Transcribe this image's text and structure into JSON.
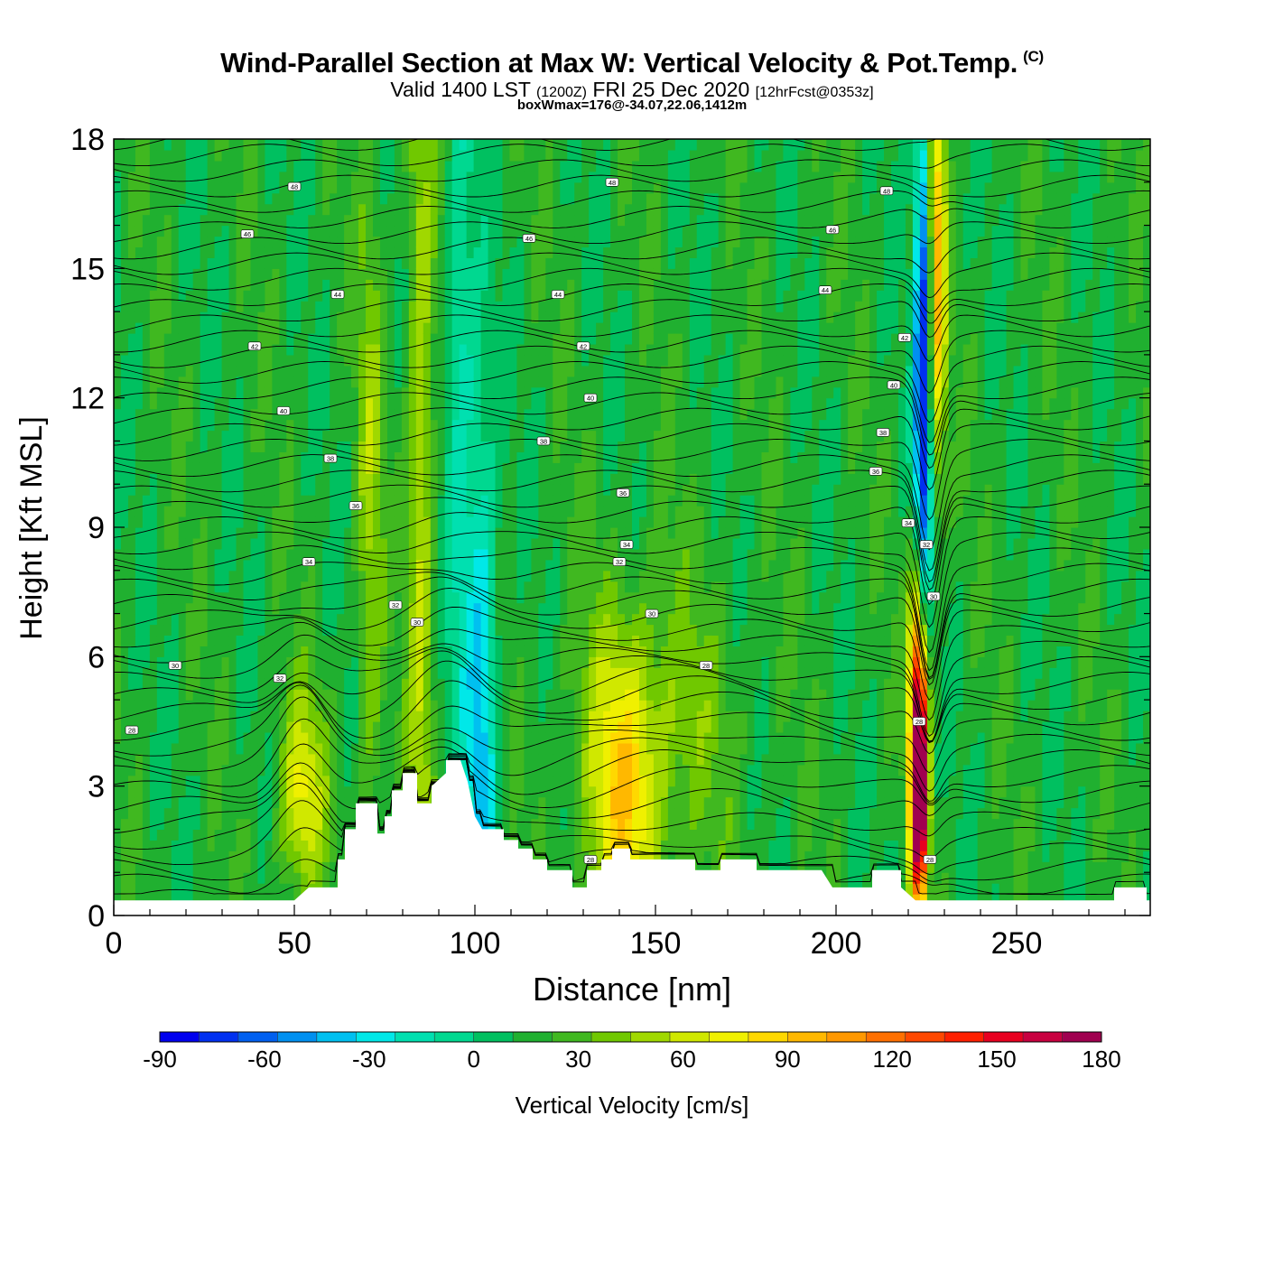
{
  "title": "Wind-Parallel Section at Max W: Vertical Velocity & Pot.Temp.",
  "title_mark": "(C)",
  "subtitle": {
    "valid": "Valid 1400 LST",
    "zulu": "(1200Z)",
    "date": "FRI 25 Dec 2020",
    "forecast": "[12hrFcst@0353z]"
  },
  "box_info": "boxWmax=176@-34.07,22.06,1412m",
  "chart_data": {
    "type": "heatmap",
    "title": "Wind-Parallel Section at Max W: Vertical Velocity & Pot.Temp.",
    "xlabel": "Distance [nm]",
    "ylabel": "Height [Kft MSL]",
    "xlim": [
      0,
      287
    ],
    "ylim": [
      0,
      18
    ],
    "x_ticks": [
      0,
      50,
      100,
      150,
      200,
      250
    ],
    "y_ticks": [
      0,
      3,
      6,
      9,
      12,
      15,
      18
    ],
    "colorbar": {
      "label": "Vertical Velocity [cm/s]",
      "min": -90,
      "max": 180,
      "step": 10,
      "ticks": [
        -90,
        -60,
        -30,
        0,
        30,
        60,
        90,
        120,
        150,
        180
      ],
      "colors": [
        "#0000ee",
        "#0030f0",
        "#0060f0",
        "#0090f0",
        "#00c0f0",
        "#00e8e8",
        "#00e0b0",
        "#00d890",
        "#00c060",
        "#20b030",
        "#40b820",
        "#70c800",
        "#a0d800",
        "#d0e800",
        "#f0f000",
        "#ffd800",
        "#ffb800",
        "#ff9800",
        "#ff7000",
        "#ff4800",
        "#ff2000",
        "#e80020",
        "#c80040",
        "#a00050"
      ]
    },
    "terrain_kft": [
      [
        0,
        0.35
      ],
      [
        10,
        0.35
      ],
      [
        20,
        0.35
      ],
      [
        30,
        0.35
      ],
      [
        40,
        0.35
      ],
      [
        50,
        0.35
      ],
      [
        54,
        0.65
      ],
      [
        62,
        0.65
      ],
      [
        62,
        1.3
      ],
      [
        64,
        1.3
      ],
      [
        64,
        2.0
      ],
      [
        67,
        2.0
      ],
      [
        67,
        2.6
      ],
      [
        73,
        2.6
      ],
      [
        73,
        1.9
      ],
      [
        75,
        1.9
      ],
      [
        75,
        2.3
      ],
      [
        77,
        2.3
      ],
      [
        77,
        2.9
      ],
      [
        80,
        2.9
      ],
      [
        80,
        3.3
      ],
      [
        84,
        3.3
      ],
      [
        84,
        2.6
      ],
      [
        88,
        2.6
      ],
      [
        88,
        3.0
      ],
      [
        92,
        3.3
      ],
      [
        92,
        3.6
      ],
      [
        96,
        3.6
      ],
      [
        98,
        3.1
      ],
      [
        100,
        2.3
      ],
      [
        102,
        2.0
      ],
      [
        108,
        2.0
      ],
      [
        108,
        1.75
      ],
      [
        112,
        1.75
      ],
      [
        112,
        1.55
      ],
      [
        116,
        1.55
      ],
      [
        116,
        1.3
      ],
      [
        120,
        1.3
      ],
      [
        120,
        1.05
      ],
      [
        127,
        1.05
      ],
      [
        127,
        0.65
      ],
      [
        131,
        0.65
      ],
      [
        131,
        1.05
      ],
      [
        135,
        1.05
      ],
      [
        135,
        1.3
      ],
      [
        138,
        1.3
      ],
      [
        138,
        1.55
      ],
      [
        143,
        1.55
      ],
      [
        143,
        1.3
      ],
      [
        161,
        1.3
      ],
      [
        161,
        1.05
      ],
      [
        168,
        1.05
      ],
      [
        168,
        1.3
      ],
      [
        178,
        1.3
      ],
      [
        178,
        1.05
      ],
      [
        196,
        1.05
      ],
      [
        199,
        0.65
      ],
      [
        210,
        0.65
      ],
      [
        210,
        1.05
      ],
      [
        218,
        1.05
      ],
      [
        218,
        0.65
      ],
      [
        222,
        0.35
      ],
      [
        277,
        0.35
      ],
      [
        277,
        0.65
      ],
      [
        286,
        0.65
      ],
      [
        286,
        0.35
      ],
      [
        287,
        0.35
      ]
    ],
    "w_features": [
      {
        "x": 52,
        "z": 2.8,
        "sx": 4.5,
        "sz": 1.6,
        "w": 48
      },
      {
        "x": 85,
        "z": 10,
        "sx": 2.5,
        "sz": 9,
        "w": 38
      },
      {
        "x": 71,
        "z": 9,
        "sx": 2.5,
        "sz": 6,
        "w": 28
      },
      {
        "x": 102,
        "z": 4.5,
        "sx": 3,
        "sz": 5,
        "w": -48
      },
      {
        "x": 96,
        "z": 12,
        "sx": 2.8,
        "sz": 6,
        "w": -30
      },
      {
        "x": 141,
        "z": 2.5,
        "sx": 7,
        "sz": 2.5,
        "w": 48
      },
      {
        "x": 150,
        "z": 4.5,
        "sx": 16,
        "sz": 2.5,
        "w": 22
      },
      {
        "x": 223,
        "z": 5,
        "sx": 1.8,
        "sz": 2.2,
        "w": 158
      },
      {
        "x": 223,
        "z": 2.2,
        "sx": 1.6,
        "sz": 1.5,
        "w": 130
      },
      {
        "x": 228,
        "z": 15,
        "sx": 1.8,
        "sz": 3.5,
        "w": 70
      },
      {
        "x": 224,
        "z": 9.5,
        "sx": 1.7,
        "sz": 4,
        "w": -80
      },
      {
        "x": 224,
        "z": 16,
        "sx": 1.5,
        "sz": 3,
        "w": -50
      }
    ],
    "theta_labels": [
      {
        "x": 5,
        "z": 4.3,
        "text": "28"
      },
      {
        "x": 17,
        "z": 5.8,
        "text": "30"
      },
      {
        "x": 46,
        "z": 5.5,
        "text": "32"
      },
      {
        "x": 54,
        "z": 8.2,
        "text": "34"
      },
      {
        "x": 67,
        "z": 9.5,
        "text": "36"
      },
      {
        "x": 60,
        "z": 10.6,
        "text": "38"
      },
      {
        "x": 47,
        "z": 11.7,
        "text": "40"
      },
      {
        "x": 39,
        "z": 13.2,
        "text": "42"
      },
      {
        "x": 62,
        "z": 14.4,
        "text": "44"
      },
      {
        "x": 37,
        "z": 15.8,
        "text": "46"
      },
      {
        "x": 50,
        "z": 16.9,
        "text": "48"
      },
      {
        "x": 78,
        "z": 7.2,
        "text": "32"
      },
      {
        "x": 84,
        "z": 6.8,
        "text": "30"
      },
      {
        "x": 140,
        "z": 8.2,
        "text": "32"
      },
      {
        "x": 142,
        "z": 8.6,
        "text": "34"
      },
      {
        "x": 149,
        "z": 7.0,
        "text": "30"
      },
      {
        "x": 141,
        "z": 9.8,
        "text": "36"
      },
      {
        "x": 119,
        "z": 11.0,
        "text": "38"
      },
      {
        "x": 132,
        "z": 12.0,
        "text": "40"
      },
      {
        "x": 130,
        "z": 13.2,
        "text": "42"
      },
      {
        "x": 123,
        "z": 14.4,
        "text": "44"
      },
      {
        "x": 115,
        "z": 15.7,
        "text": "46"
      },
      {
        "x": 138,
        "z": 17.0,
        "text": "48"
      },
      {
        "x": 164,
        "z": 5.8,
        "text": "28"
      },
      {
        "x": 132,
        "z": 1.3,
        "text": "28"
      },
      {
        "x": 211,
        "z": 10.3,
        "text": "36"
      },
      {
        "x": 213,
        "z": 11.2,
        "text": "38"
      },
      {
        "x": 216,
        "z": 12.3,
        "text": "40"
      },
      {
        "x": 219,
        "z": 13.4,
        "text": "42"
      },
      {
        "x": 197,
        "z": 14.5,
        "text": "44"
      },
      {
        "x": 199,
        "z": 15.9,
        "text": "46"
      },
      {
        "x": 214,
        "z": 16.8,
        "text": "48"
      },
      {
        "x": 220,
        "z": 9.1,
        "text": "34"
      },
      {
        "x": 225,
        "z": 8.6,
        "text": "32"
      },
      {
        "x": 227,
        "z": 7.4,
        "text": "30"
      },
      {
        "x": 223,
        "z": 4.5,
        "text": "28"
      },
      {
        "x": 226,
        "z": 1.3,
        "text": "28"
      }
    ]
  }
}
